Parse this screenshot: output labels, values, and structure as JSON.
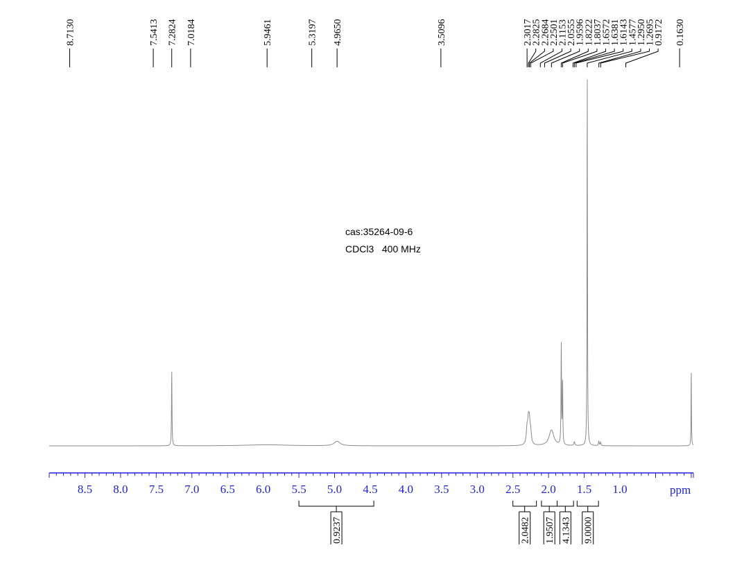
{
  "chart_data": {
    "type": "line",
    "title": "",
    "xlabel": "ppm",
    "ylabel": "",
    "x_reversed": true,
    "xlim": [
      9.0,
      -0.03
    ],
    "ylim": [
      0,
      1.0
    ],
    "grid": false,
    "annotations": [
      "cas:35264-09-6",
      "CDCl3   400 MHz"
    ],
    "x_ticks": [
      8.5,
      8.0,
      7.5,
      7.0,
      6.5,
      6.0,
      5.5,
      5.0,
      4.5,
      4.0,
      3.5,
      3.0,
      2.5,
      2.0,
      1.5,
      1.0
    ],
    "x_tick_labels": [
      "8.5",
      "8.0",
      "7.5",
      "7.0",
      "6.5",
      "6.0",
      "5.5",
      "5.0",
      "4.5",
      "4.0",
      "3.5",
      "3.0",
      "2.5",
      "2.0",
      "1.5",
      "1.0"
    ],
    "peak_labels": [
      {
        "ppm": 8.713,
        "text": "8.7130"
      },
      {
        "ppm": 7.5413,
        "text": "7.5413"
      },
      {
        "ppm": 7.2824,
        "text": "7.2824"
      },
      {
        "ppm": 7.0184,
        "text": "7.0184"
      },
      {
        "ppm": 5.9461,
        "text": "5.9461"
      },
      {
        "ppm": 5.3197,
        "text": "5.3197"
      },
      {
        "ppm": 4.965,
        "text": "4.9650"
      },
      {
        "ppm": 3.5096,
        "text": "3.5096"
      },
      {
        "ppm": 2.3017,
        "text": "2.3017"
      },
      {
        "ppm": 2.2825,
        "text": "2.2825"
      },
      {
        "ppm": 2.2684,
        "text": "2.2684"
      },
      {
        "ppm": 2.2501,
        "text": "2.2501"
      },
      {
        "ppm": 2.1153,
        "text": "2.1153"
      },
      {
        "ppm": 2.0555,
        "text": "2.0555"
      },
      {
        "ppm": 1.9596,
        "text": "1.9596"
      },
      {
        "ppm": 1.8222,
        "text": "1.8222"
      },
      {
        "ppm": 1.8037,
        "text": "1.8037"
      },
      {
        "ppm": 1.6572,
        "text": "1.6572"
      },
      {
        "ppm": 1.6381,
        "text": "1.6381"
      },
      {
        "ppm": 1.6143,
        "text": "1.6143"
      },
      {
        "ppm": 1.4577,
        "text": "1.4577"
      },
      {
        "ppm": 1.295,
        "text": "1.2950"
      },
      {
        "ppm": 1.2695,
        "text": "1.2695"
      },
      {
        "ppm": 0.9172,
        "text": "0.9172"
      },
      {
        "ppm": 0.163,
        "text": "0.1630"
      }
    ],
    "integrals": [
      {
        "from": 5.5,
        "to": 4.45,
        "value": "0.9237"
      },
      {
        "from": 2.5,
        "to": 2.17,
        "value": "2.0482"
      },
      {
        "from": 2.1,
        "to": 1.88,
        "value": "1.9507"
      },
      {
        "from": 1.88,
        "to": 1.65,
        "value": "4.1343"
      },
      {
        "from": 1.6,
        "to": 1.3,
        "value": "9.0000"
      }
    ],
    "series": [
      {
        "peaks": [
          {
            "ppm": 7.2824,
            "height": 0.2,
            "width": 0.004
          },
          {
            "ppm": 5.95,
            "height": 0.003,
            "width": 0.35
          },
          {
            "ppm": 4.965,
            "height": 0.012,
            "width": 0.05
          },
          {
            "ppm": 2.3017,
            "height": 0.04,
            "width": 0.012
          },
          {
            "ppm": 2.2825,
            "height": 0.055,
            "width": 0.012
          },
          {
            "ppm": 2.2684,
            "height": 0.05,
            "width": 0.012
          },
          {
            "ppm": 2.2501,
            "height": 0.028,
            "width": 0.012
          },
          {
            "ppm": 1.9596,
            "height": 0.042,
            "width": 0.04
          },
          {
            "ppm": 1.8222,
            "height": 0.27,
            "width": 0.004
          },
          {
            "ppm": 1.8037,
            "height": 0.17,
            "width": 0.004
          },
          {
            "ppm": 1.6381,
            "height": 0.01,
            "width": 0.008
          },
          {
            "ppm": 1.4577,
            "height": 1.0,
            "width": 0.0035
          },
          {
            "ppm": 1.295,
            "height": 0.012,
            "width": 0.006
          },
          {
            "ppm": 1.2695,
            "height": 0.009,
            "width": 0.006
          },
          {
            "ppm": 0.0,
            "height": 0.21,
            "width": 0.003
          }
        ]
      }
    ]
  }
}
